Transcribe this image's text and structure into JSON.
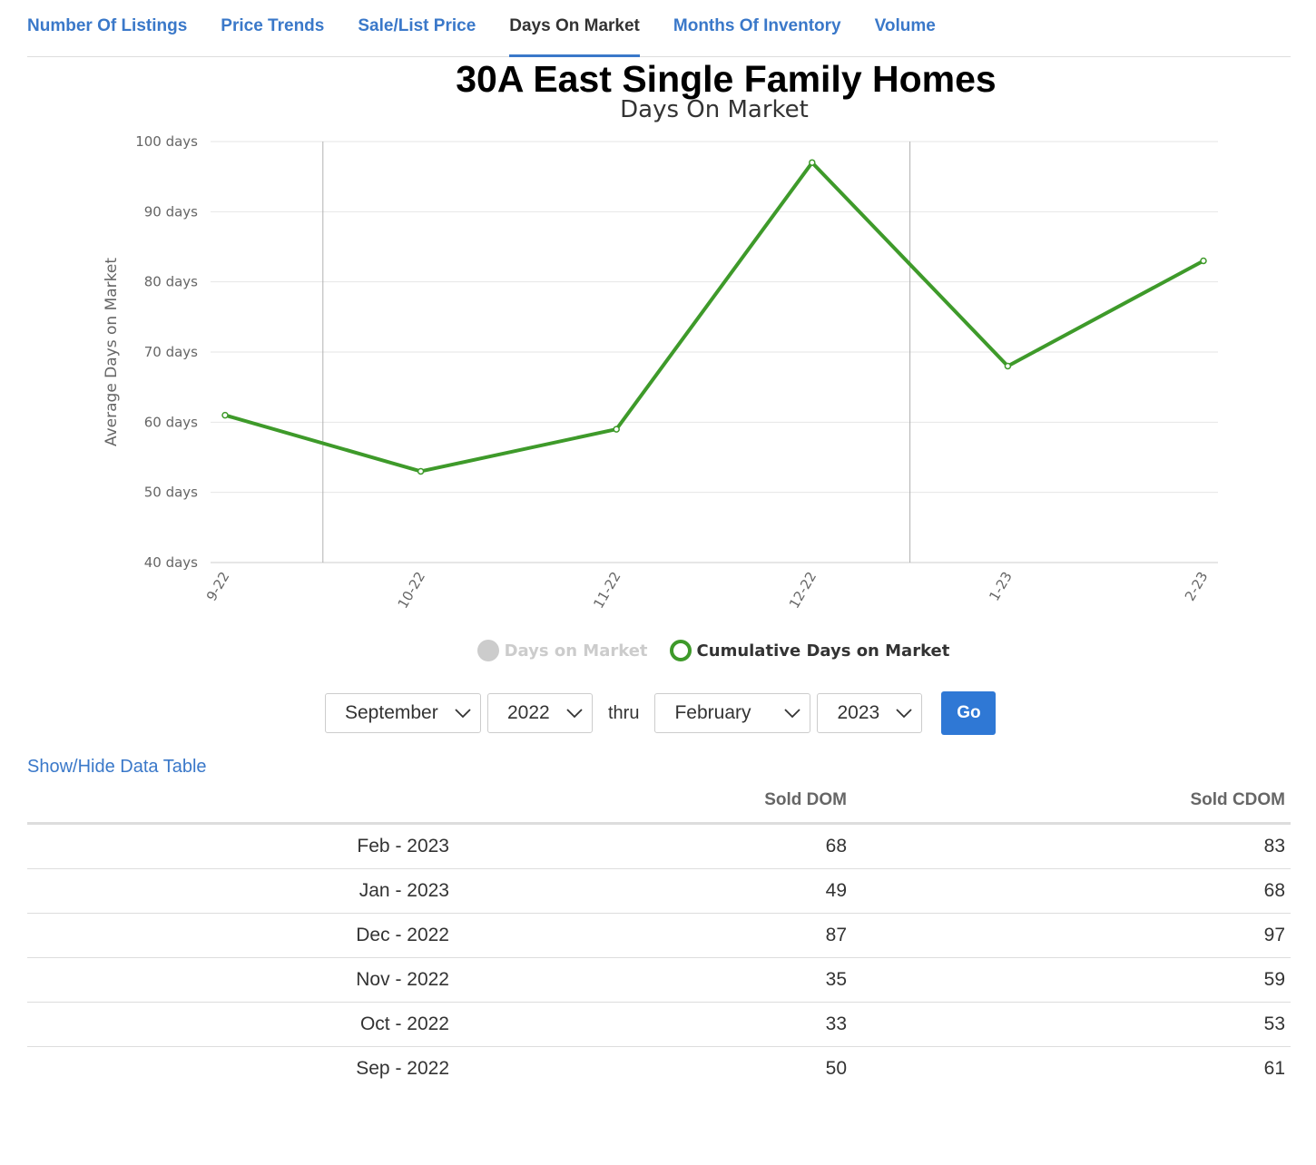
{
  "tabs": [
    {
      "label": "Number Of Listings",
      "active": false
    },
    {
      "label": "Price Trends",
      "active": false
    },
    {
      "label": "Sale/List Price",
      "active": false
    },
    {
      "label": "Days On Market",
      "active": true
    },
    {
      "label": "Months Of Inventory",
      "active": false
    },
    {
      "label": "Volume",
      "active": false
    }
  ],
  "colors": {
    "link": "#3a78c9",
    "series_line": "#3e9a2a",
    "go_button": "#2f78d5"
  },
  "chart_data": {
    "type": "line",
    "title": "30A East Single Family Homes",
    "subtitle": "Days On Market",
    "ylabel": "Average Days on Market",
    "xlabel": "",
    "ylim": [
      40,
      100
    ],
    "y_tick_values": [
      40,
      50,
      60,
      70,
      80,
      90,
      100
    ],
    "y_tick_suffix": " days",
    "categories": [
      "9-22",
      "10-22",
      "11-22",
      "12-22",
      "1-23",
      "2-23"
    ],
    "year_separators_after": [
      "9-22",
      "12-22"
    ],
    "grid": true,
    "series": [
      {
        "name": "Days on Market",
        "visible": false,
        "values": [
          50,
          33,
          35,
          87,
          49,
          68
        ]
      },
      {
        "name": "Cumulative Days on Market",
        "visible": true,
        "values": [
          61,
          53,
          59,
          97,
          68,
          83
        ]
      }
    ],
    "legend_position": "bottom-center"
  },
  "controls": {
    "from_month": "September",
    "from_year": "2022",
    "thru_label": "thru",
    "to_month": "February",
    "to_year": "2023",
    "go_label": "Go",
    "toggle_table_label": "Show/Hide Data Table"
  },
  "table": {
    "headers": [
      "",
      "Sold DOM",
      "Sold CDOM"
    ],
    "rows": [
      [
        "Feb - 2023",
        "68",
        "83"
      ],
      [
        "Jan - 2023",
        "49",
        "68"
      ],
      [
        "Dec - 2022",
        "87",
        "97"
      ],
      [
        "Nov - 2022",
        "35",
        "59"
      ],
      [
        "Oct - 2022",
        "33",
        "53"
      ],
      [
        "Sep - 2022",
        "50",
        "61"
      ]
    ]
  }
}
